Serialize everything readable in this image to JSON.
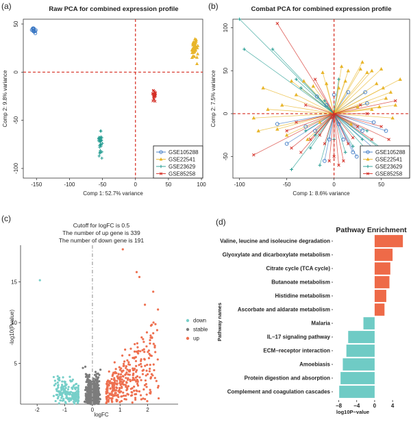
{
  "colors": {
    "blue": "#3b78c4",
    "yellow": "#e8b52a",
    "teal": "#239c91",
    "red": "#d42e25",
    "down": "#77cfc9",
    "stable": "#7c7c7c",
    "up": "#ee7050",
    "bar_up": "#ee6a48",
    "bar_down": "#6fcbc5",
    "ref": "#d62a1e"
  },
  "panel_labels": {
    "a": "(a)",
    "b": "(b)",
    "c": "(c)",
    "d": "(d)"
  },
  "chart_data": [
    {
      "id": "a",
      "type": "scatter",
      "title": "Raw PCA for combined expression profile",
      "xlabel": "Comp 1: 52.7% variance",
      "ylabel": "Comp 2: 9.8% variance",
      "xlim": [
        -170,
        102
      ],
      "ylim": [
        -110,
        55
      ],
      "xticks": [
        -150,
        -100,
        -50,
        0,
        50,
        100
      ],
      "yticks": [
        -100,
        -50,
        0,
        50
      ],
      "legend": [
        "GSE105288",
        "GSE22541",
        "GSE23629",
        "GSE85258"
      ],
      "legend_position": "bottom-right",
      "series": [
        {
          "name": "GSE105288",
          "marker": "circle",
          "center": [
            -155,
            44
          ],
          "spread": [
            3,
            3
          ]
        },
        {
          "name": "GSE22541",
          "marker": "triangle",
          "center": [
            90,
            24
          ],
          "spread": [
            5,
            9
          ]
        },
        {
          "name": "GSE23629",
          "marker": "plus",
          "center": [
            -53,
            -73
          ],
          "spread": [
            3,
            14
          ]
        },
        {
          "name": "GSE85258",
          "marker": "x",
          "center": [
            28,
            -24
          ],
          "spread": [
            3,
            6
          ]
        }
      ]
    },
    {
      "id": "b",
      "type": "biplot",
      "title": "Combat PCA for combined expression profile",
      "xlabel": "Comp 1: 8.6% variance",
      "ylabel": "Comp 2: 7.5% variance",
      "xlim": [
        -107,
        80
      ],
      "ylim": [
        -75,
        110
      ],
      "xticks": [
        -100,
        -50,
        0,
        50
      ],
      "yticks": [
        -50,
        0,
        50,
        100
      ],
      "legend": [
        "GSE105288",
        "GSE22541",
        "GSE23629",
        "GSE85258"
      ],
      "legend_position": "bottom-right",
      "series": [
        {
          "name": "GSE105288",
          "marker": "circle",
          "points": [
            [
              -20,
              -20
            ],
            [
              -18,
              20
            ],
            [
              -8,
              10
            ],
            [
              10,
              -30
            ],
            [
              24,
              -50
            ],
            [
              30,
              -20
            ],
            [
              42,
              -10
            ],
            [
              50,
              -48
            ],
            [
              -50,
              -35
            ],
            [
              -10,
              -55
            ],
            [
              0,
              22
            ],
            [
              15,
              25
            ],
            [
              33,
              25
            ],
            [
              35,
              12
            ],
            [
              -30,
              -15
            ],
            [
              55,
              -20
            ],
            [
              5,
              -12
            ],
            [
              -60,
              -12
            ],
            [
              20,
              -45
            ],
            [
              -5,
              -30
            ]
          ]
        },
        {
          "name": "GSE22541",
          "marker": "triangle",
          "points": [
            [
              -80,
              -20
            ],
            [
              -75,
              30
            ],
            [
              -60,
              -18
            ],
            [
              -50,
              -25
            ],
            [
              -45,
              38
            ],
            [
              -40,
              22
            ],
            [
              -32,
              38
            ],
            [
              -28,
              -30
            ],
            [
              -15,
              -10
            ],
            [
              -8,
              35
            ],
            [
              8,
              55
            ],
            [
              15,
              50
            ],
            [
              28,
              52
            ],
            [
              35,
              48
            ],
            [
              40,
              50
            ],
            [
              45,
              35
            ],
            [
              50,
              52
            ],
            [
              52,
              30
            ],
            [
              55,
              18
            ],
            [
              60,
              25
            ],
            [
              65,
              10
            ],
            [
              62,
              -5
            ],
            [
              48,
              8
            ],
            [
              40,
              5
            ],
            [
              25,
              8
            ],
            [
              18,
              -12
            ],
            [
              5,
              30
            ],
            [
              12,
              38
            ],
            [
              -22,
              32
            ],
            [
              -55,
              10
            ],
            [
              -70,
              5
            ],
            [
              -85,
              -5
            ],
            [
              -12,
              48
            ],
            [
              30,
              60
            ],
            [
              70,
              40
            ]
          ]
        },
        {
          "name": "GSE23629",
          "marker": "plus",
          "points": [
            [
              -100,
              110
            ],
            [
              -95,
              75
            ],
            [
              -65,
              75
            ],
            [
              -45,
              -65
            ],
            [
              -40,
              40
            ],
            [
              -35,
              30
            ],
            [
              -25,
              -40
            ],
            [
              -20,
              -25
            ],
            [
              -15,
              -60
            ],
            [
              -10,
              15
            ],
            [
              0,
              -30
            ],
            [
              5,
              40
            ],
            [
              12,
              -45
            ],
            [
              20,
              -38
            ],
            [
              30,
              -30
            ],
            [
              45,
              -55
            ],
            [
              50,
              -40
            ],
            [
              35,
              -20
            ],
            [
              -30,
              -20
            ],
            [
              60,
              -50
            ]
          ]
        },
        {
          "name": "GSE85258",
          "marker": "x",
          "points": [
            [
              -85,
              -48
            ],
            [
              -60,
              105
            ],
            [
              -50,
              -20
            ],
            [
              -45,
              -40
            ],
            [
              -35,
              -45
            ],
            [
              -30,
              10
            ],
            [
              -25,
              -30
            ],
            [
              -15,
              -25
            ],
            [
              -10,
              -35
            ],
            [
              -5,
              -55
            ],
            [
              0,
              -50
            ],
            [
              5,
              -60
            ],
            [
              10,
              -55
            ],
            [
              15,
              -35
            ],
            [
              20,
              -28
            ],
            [
              25,
              -15
            ],
            [
              28,
              10
            ],
            [
              35,
              0
            ],
            [
              40,
              -30
            ],
            [
              50,
              -15
            ],
            [
              58,
              -30
            ],
            [
              65,
              15
            ],
            [
              -20,
              40
            ],
            [
              -2,
              -5
            ],
            [
              -40,
              -10
            ]
          ]
        }
      ]
    },
    {
      "id": "c",
      "type": "scatter",
      "title_lines": [
        "Cutoff for logFC is 0.5",
        "The number of up gene is 339",
        "The number of down gene is 191"
      ],
      "xlabel": "logFC",
      "ylabel": "-log10(Pvalue)",
      "xlim": [
        -2.6,
        3.1
      ],
      "ylim": [
        0,
        19.5
      ],
      "xticks": [
        -2,
        -1,
        0,
        1,
        2
      ],
      "yticks": [
        5,
        10,
        15
      ],
      "cutoff": 0.5,
      "up_count": 339,
      "down_count": 191,
      "legend": [
        "down",
        "stable",
        "up"
      ],
      "legend_position": "right"
    },
    {
      "id": "d",
      "type": "bar",
      "orientation": "horizontal",
      "title": "Pathway Enrichment",
      "xlabel": "log10P−value",
      "ylabel": "Pathway names",
      "xlim": [
        -9,
        7.5
      ],
      "xticks": [
        -8,
        -4,
        0,
        4
      ],
      "xtick_labels": [
        "−8",
        "−4",
        "0",
        "4"
      ],
      "categories": [
        "Valine, leucine and isoleucine degradation",
        "Glyoxylate and dicarboxylate metabolism",
        "Citrate cycle (TCA cycle)",
        "Butanoate metabolism",
        "Histidine metabolism",
        "Ascorbate and aldarate metabolism",
        "Malaria",
        "IL−17 signaling pathway",
        "ECM−receptor interaction",
        "Amoebiasis",
        "Protein digestion and absorption",
        "Complement and coagulation cascades"
      ],
      "values": [
        6.3,
        4.0,
        3.5,
        3.3,
        2.6,
        2.2,
        -2.5,
        -5.9,
        -6.3,
        -7.1,
        -7.6,
        -7.9
      ]
    }
  ]
}
